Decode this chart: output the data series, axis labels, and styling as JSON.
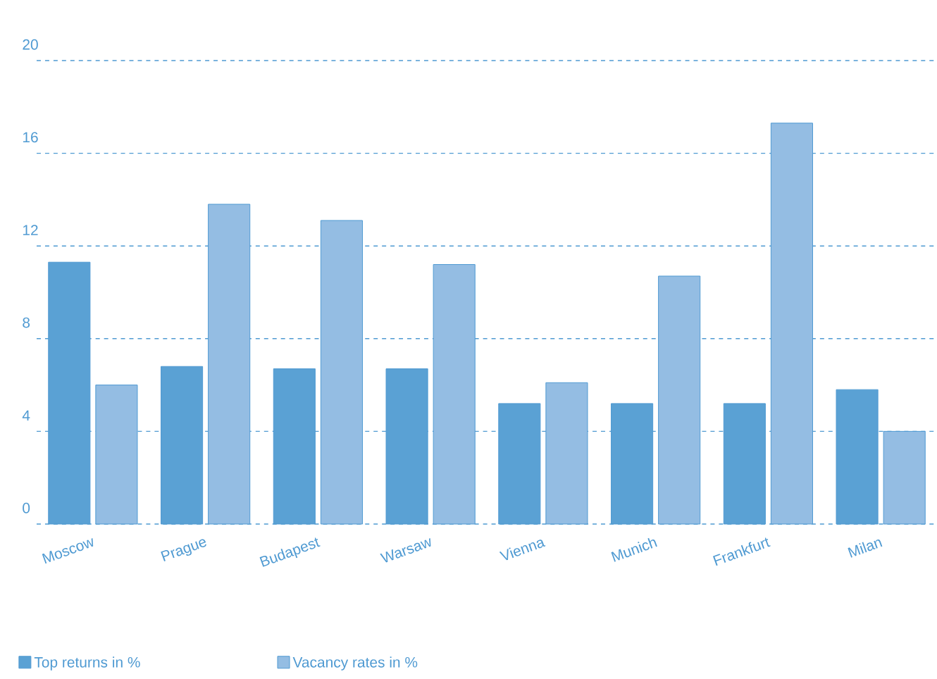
{
  "chart_data": {
    "type": "bar",
    "categories": [
      "Moscow",
      "Prague",
      "Budapest",
      "Warsaw",
      "Vienna",
      "Munich",
      "Frankfurt",
      "Milan"
    ],
    "series": [
      {
        "name": "Top returns in %",
        "color": "#5aa1d4",
        "values": [
          11.3,
          6.8,
          6.7,
          6.7,
          5.2,
          5.2,
          5.2,
          5.8
        ]
      },
      {
        "name": "Vacancy rates in %",
        "color": "#94bde3",
        "values": [
          6.0,
          13.8,
          13.1,
          11.2,
          6.1,
          10.7,
          17.3,
          4.0
        ]
      }
    ],
    "ylim": [
      0,
      20
    ],
    "yticks": [
      0,
      4,
      8,
      12,
      16,
      20
    ],
    "grid": "y",
    "legend": "bottom"
  }
}
